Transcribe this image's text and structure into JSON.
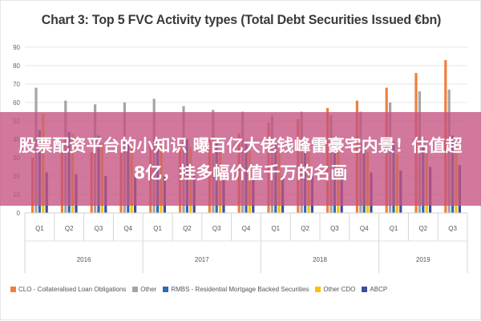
{
  "chart_data": {
    "type": "bar",
    "title": "Chart 3: Top 5 FVC Activity types (Total Debt Securities Issued €bn)",
    "categories": [
      "Q1",
      "Q2",
      "Q3",
      "Q4",
      "Q1",
      "Q2",
      "Q3",
      "Q4",
      "Q1",
      "Q2",
      "Q3",
      "Q4",
      "Q1",
      "Q2",
      "Q3"
    ],
    "year_groups": [
      {
        "label": "2016",
        "count": 4
      },
      {
        "label": "2017",
        "count": 4
      },
      {
        "label": "2018",
        "count": 4
      },
      {
        "label": "2019",
        "count": 3
      }
    ],
    "ylim": [
      0,
      90
    ],
    "yticks": [
      0,
      10,
      20,
      30,
      40,
      50,
      60,
      70,
      80,
      90
    ],
    "grid": true,
    "legend_position": "bottom",
    "series": [
      {
        "name": "CLO - Collateralised Loan Obligations",
        "color": "#f07f3c",
        "values": [
          30,
          33,
          33,
          36,
          36,
          37,
          40,
          43,
          49,
          51,
          57,
          61,
          68,
          76,
          83
        ]
      },
      {
        "name": "Other",
        "color": "#a5a5a5",
        "values": [
          68,
          61,
          59,
          60,
          62,
          58,
          56,
          55,
          53,
          55,
          53,
          55,
          60,
          66,
          67
        ]
      },
      {
        "name": "RMBS - Residential Mortgage Backed Securities",
        "color": "#2b6cb0",
        "values": [
          45,
          44,
          42,
          40,
          41,
          40,
          39,
          38,
          37,
          38,
          37,
          38,
          39,
          41,
          42
        ]
      },
      {
        "name": "Other CDO",
        "color": "#ffc000",
        "values": [
          54,
          43,
          38,
          37,
          37,
          36,
          34,
          34,
          34,
          33,
          33,
          33,
          32,
          33,
          34
        ]
      },
      {
        "name": "ABCP",
        "color": "#3c4e9e",
        "values": [
          22,
          21,
          20,
          20,
          20,
          20,
          19,
          19,
          20,
          20,
          21,
          22,
          23,
          25,
          26
        ]
      }
    ]
  },
  "overlay": {
    "text": "股票配资平台的小知识 曝百亿大佬钱峰雷豪宅内景！估值超8亿，挂多幅价值千万的名画"
  }
}
